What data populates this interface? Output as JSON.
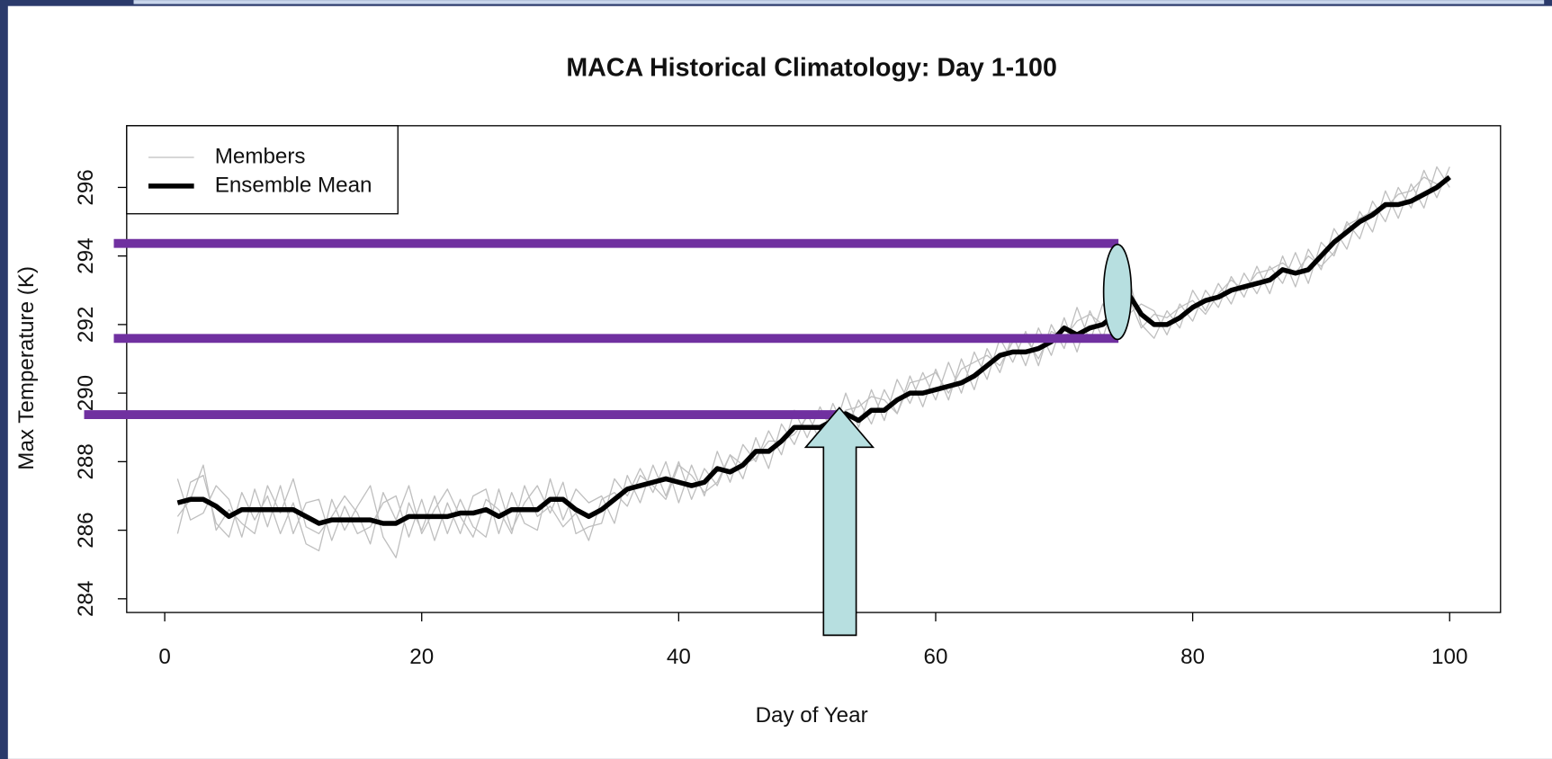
{
  "chart_data": {
    "type": "line",
    "title": "MACA Historical Climatology: Day 1-100",
    "xlabel": "Day of Year",
    "ylabel": "Max Temperature (K)",
    "legend": "topleft",
    "xlim": [
      -2.96,
      103.96
    ],
    "ylim": [
      283.6,
      297.8
    ],
    "xticks": [
      0,
      20,
      40,
      60,
      80,
      100
    ],
    "yticks": [
      284,
      286,
      288,
      290,
      292,
      294,
      296
    ],
    "x": [
      1,
      2,
      3,
      4,
      5,
      6,
      7,
      8,
      9,
      10,
      11,
      12,
      13,
      14,
      15,
      16,
      17,
      18,
      19,
      20,
      21,
      22,
      23,
      24,
      25,
      26,
      27,
      28,
      29,
      30,
      31,
      32,
      33,
      34,
      35,
      36,
      37,
      38,
      39,
      40,
      41,
      42,
      43,
      44,
      45,
      46,
      47,
      48,
      49,
      50,
      51,
      52,
      53,
      54,
      55,
      56,
      57,
      58,
      59,
      60,
      61,
      62,
      63,
      64,
      65,
      66,
      67,
      68,
      69,
      70,
      71,
      72,
      73,
      74,
      75,
      76,
      77,
      78,
      79,
      80,
      81,
      82,
      83,
      84,
      85,
      86,
      87,
      88,
      89,
      90,
      91,
      92,
      93,
      94,
      95,
      96,
      97,
      98,
      99,
      100
    ],
    "series": [
      {
        "name": "Members",
        "color": "#bfbfbf",
        "values": [
          [
            285.9,
            287.4,
            287.6,
            286.2,
            285.8,
            287.1,
            286.3,
            287.0,
            285.9,
            286.8,
            285.6,
            285.4,
            286.9,
            286.0,
            286.7,
            287.3,
            285.8,
            285.2,
            286.8,
            286.0,
            287.0,
            285.9,
            286.9,
            286.1,
            285.8,
            287.2,
            286.0,
            286.8,
            287.3,
            286.5,
            287.4,
            285.9,
            286.1,
            286.2,
            287.5,
            287.0,
            287.8,
            287.1,
            288.0,
            286.8,
            287.9,
            287.0,
            288.3,
            287.4,
            288.5,
            288.0,
            288.9,
            288.2,
            289.5,
            288.7,
            289.6,
            288.8,
            290.0,
            289.0,
            290.1,
            289.2,
            290.4,
            289.7,
            290.6,
            289.8,
            290.9,
            290.0,
            291.2,
            290.4,
            291.6,
            290.9,
            291.8,
            290.8,
            292.0,
            291.3,
            292.5,
            291.5,
            292.6,
            291.9,
            293.4,
            292.0,
            291.6,
            292.4,
            291.9,
            293.0,
            292.4,
            293.2,
            292.6,
            293.5,
            292.9,
            293.7,
            293.2,
            294.1,
            293.2,
            294.4,
            294.0,
            295.0,
            294.5,
            295.6,
            295.0,
            296.0,
            295.4,
            296.5,
            295.7,
            296.6
          ],
          [
            287.5,
            286.3,
            286.5,
            287.3,
            286.9,
            285.8,
            287.2,
            286.1,
            287.3,
            285.9,
            286.8,
            286.9,
            285.7,
            286.7,
            285.9,
            286.1,
            286.8,
            287.0,
            285.8,
            286.9,
            285.7,
            286.8,
            285.9,
            287.0,
            287.2,
            285.9,
            287.1,
            286.2,
            286.0,
            287.5,
            286.3,
            287.2,
            286.8,
            287.0,
            286.2,
            287.6,
            286.8,
            287.9,
            287.0,
            288.0,
            286.9,
            287.8,
            287.3,
            288.2,
            287.5,
            288.7,
            287.8,
            289.1,
            288.5,
            289.4,
            288.6,
            289.7,
            288.9,
            289.8,
            289.1,
            290.1,
            289.4,
            290.5,
            289.6,
            290.7,
            289.8,
            291.0,
            290.1,
            291.3,
            290.6,
            291.7,
            290.8,
            291.9,
            291.1,
            292.2,
            291.2,
            292.4,
            291.6,
            292.8,
            292.3,
            292.6,
            292.4,
            291.7,
            292.6,
            292.1,
            293.0,
            292.5,
            293.4,
            292.8,
            293.7,
            292.9,
            294.0,
            293.1,
            294.2,
            293.6,
            294.8,
            294.2,
            295.3,
            294.7,
            295.9,
            295.1,
            296.1,
            295.4,
            296.6,
            296.0
          ],
          [
            286.4,
            286.9,
            287.9,
            286.0,
            286.6,
            286.2,
            285.9,
            287.3,
            286.5,
            287.5,
            286.1,
            285.9,
            286.4,
            287.0,
            286.5,
            285.6,
            287.1,
            286.3,
            287.3,
            285.9,
            286.6,
            287.2,
            286.4,
            285.8,
            286.9,
            286.6,
            285.9,
            287.3,
            286.4,
            286.7,
            286.1,
            286.5,
            285.7,
            286.9,
            287.1,
            286.7,
            287.6,
            287.3,
            286.9,
            287.9,
            287.6,
            287.1,
            287.4,
            288.2,
            287.9,
            288.1,
            288.6,
            288.6,
            288.8,
            289.3,
            289.4,
            289.1,
            289.5,
            289.6,
            289.9,
            289.8,
            289.4,
            290.3,
            290.4,
            290.6,
            290.0,
            290.7,
            290.9,
            291.1,
            290.8,
            291.5,
            291.6,
            291.0,
            291.8,
            291.6,
            292.1,
            292.3,
            292.0,
            292.6,
            292.8,
            291.9,
            292.3,
            292.2,
            292.5,
            292.7,
            292.3,
            292.9,
            293.3,
            293.0,
            293.5,
            293.6,
            293.8,
            293.5,
            294.0,
            293.7,
            294.1,
            294.9,
            295.1,
            295.3,
            295.4,
            295.8,
            295.9,
            296.3,
            296.1,
            296.2
          ]
        ]
      },
      {
        "name": "Ensemble Mean",
        "color": "#000000",
        "values": [
          286.8,
          286.9,
          286.9,
          286.7,
          286.4,
          286.6,
          286.6,
          286.6,
          286.6,
          286.6,
          286.4,
          286.2,
          286.3,
          286.3,
          286.3,
          286.3,
          286.2,
          286.2,
          286.4,
          286.4,
          286.4,
          286.4,
          286.5,
          286.5,
          286.6,
          286.4,
          286.6,
          286.6,
          286.6,
          286.9,
          286.9,
          286.6,
          286.4,
          286.6,
          286.9,
          287.2,
          287.3,
          287.4,
          287.5,
          287.4,
          287.3,
          287.4,
          287.8,
          287.7,
          287.9,
          288.3,
          288.3,
          288.6,
          289.0,
          289.0,
          289.0,
          289.2,
          289.4,
          289.2,
          289.5,
          289.5,
          289.8,
          290.0,
          290.0,
          290.1,
          290.2,
          290.3,
          290.5,
          290.8,
          291.1,
          291.2,
          291.2,
          291.3,
          291.5,
          291.9,
          291.7,
          291.9,
          292.0,
          292.3,
          292.9,
          292.3,
          292.0,
          292.0,
          292.2,
          292.5,
          292.7,
          292.8,
          293.0,
          293.1,
          293.2,
          293.3,
          293.6,
          293.5,
          293.6,
          294.0,
          294.4,
          294.7,
          295.0,
          295.2,
          295.5,
          295.5,
          295.6,
          295.8,
          296.0,
          296.3
        ]
      }
    ]
  }
}
